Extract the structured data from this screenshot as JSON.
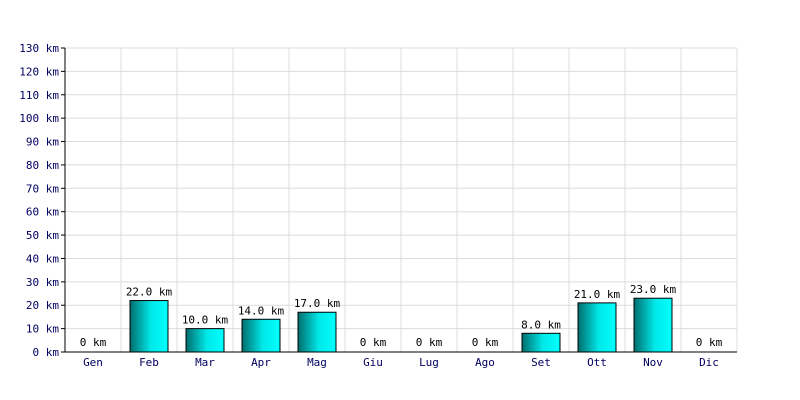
{
  "chart_data": {
    "type": "bar",
    "categories": [
      "Gen",
      "Feb",
      "Mar",
      "Apr",
      "Mag",
      "Giu",
      "Lug",
      "Ago",
      "Set",
      "Ott",
      "Nov",
      "Dic"
    ],
    "values": [
      0,
      22,
      10,
      14,
      17,
      0,
      0,
      0,
      8,
      21,
      23,
      0
    ],
    "data_labels": [
      "0 km",
      "22.0 km",
      "10.0 km",
      "14.0 km",
      "17.0 km",
      "0 km",
      "0 km",
      "0 km",
      "8.0 km",
      "21.0 km",
      "23.0 km",
      "0 km"
    ],
    "y_ticks": [
      "0 km",
      "10 km",
      "20 km",
      "30 km",
      "40 km",
      "50 km",
      "60 km",
      "70 km",
      "80 km",
      "90 km",
      "100 km",
      "110 km",
      "120 km",
      "130 km"
    ],
    "ylim": [
      0,
      130
    ],
    "grid": true,
    "bar_color_start": "#006e6e",
    "bar_color_end": "#00ffff"
  }
}
